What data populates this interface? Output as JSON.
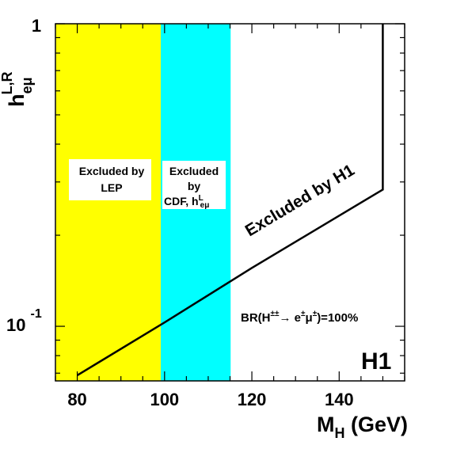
{
  "chart_data": {
    "type": "line",
    "x_axis": {
      "label": "M",
      "label_sub": "H",
      "label_unit": " (GeV)",
      "range": [
        75,
        155
      ],
      "ticks": [
        80,
        100,
        120,
        140
      ],
      "tick_labels": [
        "80",
        "100",
        "120",
        "140"
      ]
    },
    "y_axis": {
      "label": "h",
      "label_sub": "eμ",
      "label_sup": "L,R",
      "scale": "log",
      "range": [
        0.066,
        1.0
      ],
      "tick_labels": [
        {
          "value": 1.0,
          "text": "1"
        },
        {
          "value": 0.1,
          "base": "10",
          "exp": "-1"
        }
      ]
    },
    "grid": false,
    "bands": [
      {
        "name": "LEP",
        "x_range": [
          75,
          99
        ],
        "color": "#ffff00",
        "label_lines": [
          "Excluded by",
          "LEP"
        ]
      },
      {
        "name": "CDF",
        "x_range": [
          99,
          115
        ],
        "color": "#00ffff",
        "label_lines": [
          "Excluded",
          "by",
          "CDF, h"
        ],
        "label_sup": "L",
        "label_sub": "eμ"
      }
    ],
    "series": [
      {
        "name": "H1",
        "x": [
          80,
          100,
          120,
          150,
          150
        ],
        "y": [
          0.0689,
          0.103,
          0.156,
          0.283,
          1.0
        ]
      }
    ],
    "annotations": {
      "h1_curve": "Excluded by H1",
      "br_prefix": "BR(H",
      "br_sup1": "±±",
      "br_arrow": "→",
      "br_e": " e",
      "br_sup2": "±",
      "br_mu": "μ",
      "br_sup3": "±",
      "br_suffix": ")=100%",
      "experiment": "H1"
    }
  }
}
